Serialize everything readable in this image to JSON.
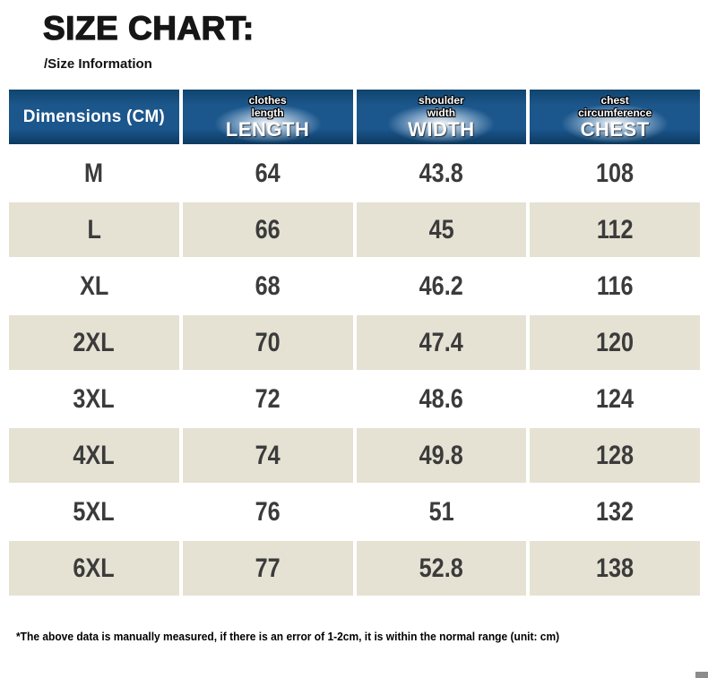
{
  "page": {
    "title": "SIZE CHART:",
    "subtitle": "/Size Information",
    "footnote": "*The above data is manually measured, if there is an error of 1-2cm, it is within the normal range (unit: cm)"
  },
  "table": {
    "header": {
      "dimensions": "Dimensions (CM)",
      "length": {
        "sub1": "clothes",
        "sub2": "length",
        "main": "LENGTH"
      },
      "width": {
        "sub1": "shoulder",
        "sub2": "width",
        "main": "WIDTH"
      },
      "chest": {
        "sub1": "chest",
        "sub2": "circumference",
        "main": "CHEST"
      }
    },
    "rows": [
      {
        "size": "M",
        "length": "64",
        "width": "43.8",
        "chest": "108"
      },
      {
        "size": "L",
        "length": "66",
        "width": "45",
        "chest": "112"
      },
      {
        "size": "XL",
        "length": "68",
        "width": "46.2",
        "chest": "116"
      },
      {
        "size": "2XL",
        "length": "70",
        "width": "47.4",
        "chest": "120"
      },
      {
        "size": "3XL",
        "length": "72",
        "width": "48.6",
        "chest": "124"
      },
      {
        "size": "4XL",
        "length": "74",
        "width": "49.8",
        "chest": "128"
      },
      {
        "size": "5XL",
        "length": "76",
        "width": "51",
        "chest": "132"
      },
      {
        "size": "6XL",
        "length": "77",
        "width": "52.8",
        "chest": "138"
      }
    ]
  },
  "chart_data": {
    "type": "table",
    "title": "SIZE CHART",
    "unit": "cm",
    "columns": [
      "Dimensions (CM)",
      "LENGTH (clothes length)",
      "WIDTH (shoulder width)",
      "CHEST (chest circumference)"
    ],
    "rows": [
      [
        "M",
        64,
        43.8,
        108
      ],
      [
        "L",
        66,
        45,
        112
      ],
      [
        "XL",
        68,
        46.2,
        116
      ],
      [
        "2XL",
        70,
        47.4,
        120
      ],
      [
        "3XL",
        72,
        48.6,
        124
      ],
      [
        "4XL",
        74,
        49.8,
        128
      ],
      [
        "5XL",
        76,
        51,
        132
      ],
      [
        "6XL",
        77,
        52.8,
        138
      ]
    ]
  },
  "colors": {
    "header_blue": "#1c578c",
    "header_blue_dark": "#0d3a60",
    "row_beige": "#e5e2d3",
    "row_white": "#ffffff",
    "value_text": "#3b3b3b",
    "corner_gray": "#8c8c8c"
  }
}
